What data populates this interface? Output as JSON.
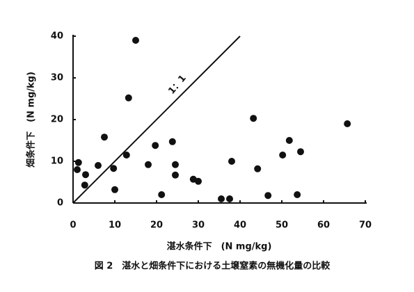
{
  "chart_data": {
    "type": "scatter",
    "caption": "図 2　湛水と畑条件下における土壌窒素の無機化量の比較",
    "x_label": "湛水条件下　(N mg/kg)",
    "y_label": "畑条件下　(N mg/kg)",
    "x": [
      15,
      13.3,
      7.5,
      43.2,
      65.7,
      19.7,
      23.8,
      12.8,
      51.8,
      54.5,
      50.2,
      38,
      1.3,
      1,
      6,
      9.7,
      18,
      24.5,
      44.2,
      3,
      24.5,
      2.8,
      28.8,
      30,
      10,
      21.2,
      46.7,
      53.7,
      35.5,
      37.5
    ],
    "values": [
      39,
      25.2,
      15.8,
      20.3,
      19,
      13.8,
      14.7,
      11.5,
      15,
      12.3,
      11.5,
      10,
      9.7,
      8,
      9,
      8.3,
      9.2,
      9.2,
      8.2,
      6.8,
      6.7,
      4.3,
      5.7,
      5.2,
      3.2,
      2,
      1.8,
      2,
      1,
      1
    ],
    "color": "#111111",
    "reference_line": {
      "x": [
        0,
        40
      ],
      "y": [
        0,
        40
      ],
      "label": "1：1"
    },
    "xlim": [
      0,
      70
    ],
    "xticks": [
      0,
      10,
      20,
      30,
      40,
      50,
      60,
      70
    ],
    "ylim": [
      0,
      40
    ],
    "yticks": [
      0,
      10,
      20,
      30,
      40
    ],
    "grid": false
  }
}
